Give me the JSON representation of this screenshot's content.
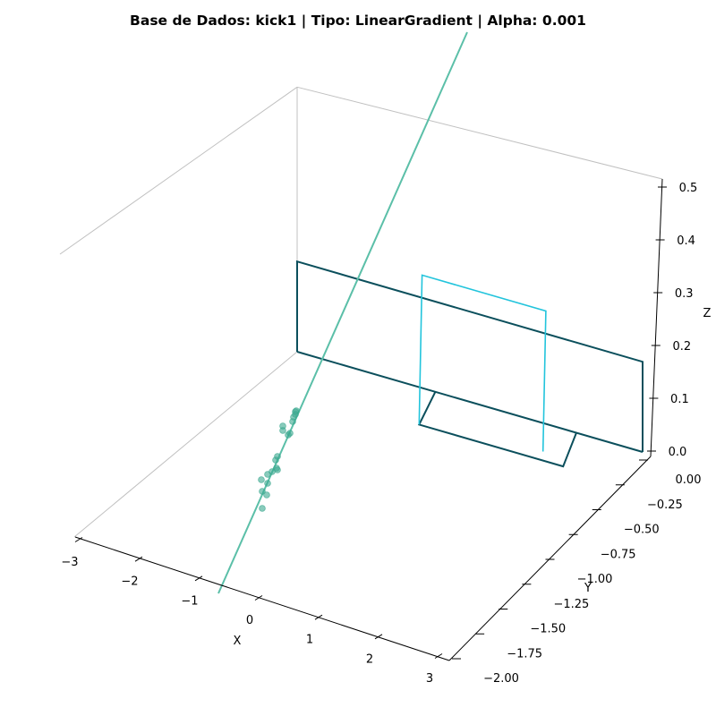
{
  "chart_data": {
    "type": "3d-line-scatter",
    "title": "Base de Dados: kick1 | Tipo: LinearGradient | Alpha: 0.001",
    "xlabel": "X",
    "ylabel": "Y",
    "zlabel": "Z",
    "x_ticks": [
      "−3",
      "−2",
      "−1",
      "0",
      "1",
      "2",
      "3"
    ],
    "y_ticks": [
      "0.00",
      "−0.25",
      "−0.50",
      "−0.75",
      "−1.00",
      "−1.25",
      "−1.50",
      "−1.75",
      "−2.00"
    ],
    "z_ticks": [
      "0.0",
      "0.1",
      "0.2",
      "0.3",
      "0.4",
      "0.5"
    ],
    "xlim": [
      -3,
      3
    ],
    "ylim": [
      -2,
      0
    ],
    "zlim": [
      0,
      0.5
    ],
    "grid": false,
    "colors": {
      "fit_line": "#5bbfa8",
      "points": "#3aa88f",
      "wall_dark": "#0b4f5c",
      "wall_light": "#22c4dc",
      "pane": "#c0c0c0",
      "axis": "#000000"
    },
    "scatter_points": [
      {
        "x": -0.63,
        "y": -1.31,
        "z": 0.0
      },
      {
        "x": -0.56,
        "y": -1.25,
        "z": 0.0
      },
      {
        "x": -0.59,
        "y": -1.23,
        "z": 0.0
      },
      {
        "x": -0.52,
        "y": -1.19,
        "z": 0.0
      },
      {
        "x": -0.55,
        "y": -1.17,
        "z": 0.0
      },
      {
        "x": -0.5,
        "y": -1.15,
        "z": 0.0
      },
      {
        "x": -0.47,
        "y": -1.11,
        "z": 0.0
      },
      {
        "x": -0.43,
        "y": -1.12,
        "z": 0.0
      },
      {
        "x": -0.4,
        "y": -1.1,
        "z": 0.0
      },
      {
        "x": -0.41,
        "y": -1.06,
        "z": 0.0
      },
      {
        "x": -0.37,
        "y": -1.03,
        "z": 0.0
      },
      {
        "x": -0.39,
        "y": -1.01,
        "z": 0.0
      },
      {
        "x": -0.27,
        "y": -0.93,
        "z": 0.0
      },
      {
        "x": -0.3,
        "y": -0.9,
        "z": 0.0
      },
      {
        "x": -0.3,
        "y": -0.87,
        "z": 0.0
      },
      {
        "x": -0.2,
        "y": -0.87,
        "z": 0.0
      },
      {
        "x": -0.17,
        "y": -0.86,
        "z": 0.0
      },
      {
        "x": -0.15,
        "y": -0.85,
        "z": 0.0
      },
      {
        "x": -0.14,
        "y": -0.83,
        "z": 0.0
      },
      {
        "x": -0.13,
        "y": -0.81,
        "z": 0.0
      }
    ],
    "fit_line": [
      {
        "x": -1.05,
        "y": -1.94,
        "z": 0.0
      },
      {
        "x": 2.85,
        "y": 0.0,
        "z": 0.53
      }
    ],
    "walls": [
      {
        "name": "dark",
        "color": "#0b4f5c",
        "x0": -3.0,
        "x1": 3.0,
        "y0": 0.0,
        "y1": -0.3,
        "z": 0.3
      },
      {
        "name": "light",
        "color": "#22c4dc",
        "x0": 0.0,
        "x1": 3.0,
        "y0": -0.3,
        "y1": -0.3,
        "z": 0.5
      }
    ]
  }
}
